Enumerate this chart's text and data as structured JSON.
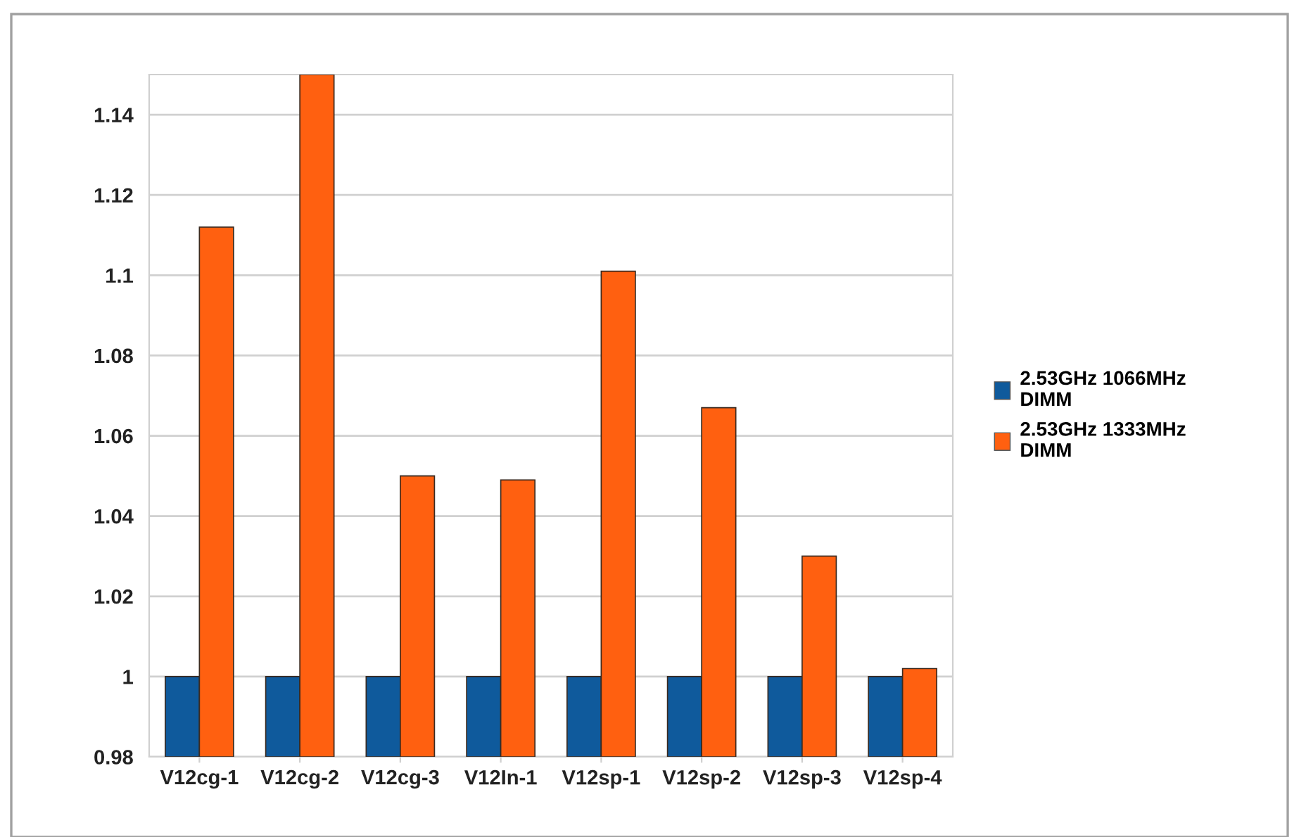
{
  "chart_data": {
    "type": "bar",
    "categories": [
      "V12cg-1",
      "V12cg-2",
      "V12cg-3",
      "V12In-1",
      "V12sp-1",
      "V12sp-2",
      "V12sp-3",
      "V12sp-4"
    ],
    "series": [
      {
        "name": "2.53GHz 1066MHz DIMM",
        "color": "#0f5a9c",
        "values": [
          1,
          1,
          1,
          1,
          1,
          1,
          1,
          1
        ]
      },
      {
        "name": "2.53GHz 1333MHz DIMM",
        "color": "#ff6010",
        "values": [
          1.112,
          1.15,
          1.05,
          1.049,
          1.101,
          1.067,
          1.03,
          1.002
        ]
      }
    ],
    "ylim": [
      0.98,
      1.15
    ],
    "yticks": [
      {
        "value": 0.98,
        "label": "0.98"
      },
      {
        "value": 1,
        "label": "1"
      },
      {
        "value": 1.02,
        "label": "1.02"
      },
      {
        "value": 1.04,
        "label": "1.04"
      },
      {
        "value": 1.06,
        "label": "1.06"
      },
      {
        "value": 1.08,
        "label": "1.08"
      },
      {
        "value": 1.1,
        "label": "1.1"
      },
      {
        "value": 1.12,
        "label": "1.12"
      },
      {
        "value": 1.14,
        "label": "1.14"
      }
    ],
    "grid": "y",
    "legend": "right"
  }
}
